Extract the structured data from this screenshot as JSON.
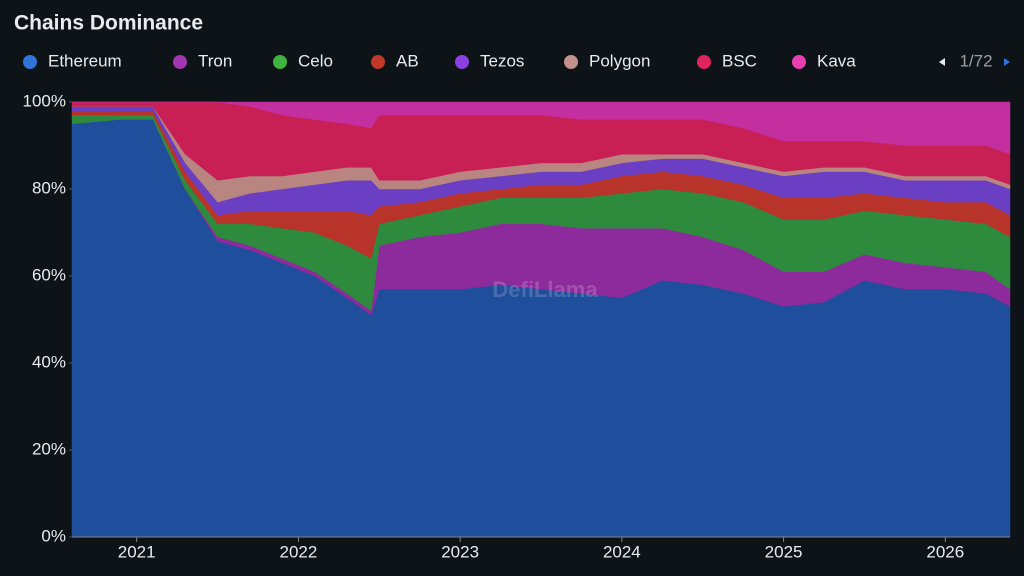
{
  "chart_data": {
    "type": "stacked_area",
    "title": "Chains Dominance",
    "watermark": "DefiLlama",
    "legend_page": "1/72",
    "x": [
      2020.6,
      2020.9,
      2021.1,
      2021.3,
      2021.5,
      2021.7,
      2021.9,
      2022.1,
      2022.3,
      2022.45,
      2022.5,
      2022.75,
      2023.0,
      2023.25,
      2023.5,
      2023.75,
      2024.0,
      2024.25,
      2024.5,
      2024.75,
      2025.0,
      2025.25,
      2025.5,
      2025.75,
      2026.0,
      2026.25,
      2026.4
    ],
    "xlim": [
      2020.6,
      2026.4
    ],
    "xticks": [
      2021,
      2022,
      2023,
      2024,
      2025,
      2026
    ],
    "ylim": [
      0,
      100
    ],
    "yticks": [
      {
        "value": 0,
        "label": "0%"
      },
      {
        "value": 20,
        "label": "20%"
      },
      {
        "value": 40,
        "label": "40%"
      },
      {
        "value": 60,
        "label": "60%"
      },
      {
        "value": 80,
        "label": "80%"
      },
      {
        "value": 100,
        "label": "100%"
      }
    ],
    "series": [
      {
        "name": "Ethereum",
        "color": "#1f4e9c",
        "legend_color": "#2f74d8",
        "values": [
          95,
          96,
          96,
          80,
          68,
          66,
          63,
          60,
          55,
          51,
          57,
          57,
          57,
          58,
          57,
          56,
          55,
          59,
          58,
          56,
          53,
          54,
          59,
          57,
          57,
          56,
          53
        ]
      },
      {
        "name": "Tron",
        "color": "#8e2b9c",
        "legend_color": "#a235b0",
        "values": [
          0,
          0,
          0,
          0,
          1,
          1,
          1,
          1,
          1,
          1,
          10,
          12,
          13,
          14,
          15,
          15,
          16,
          12,
          11,
          10,
          8,
          7,
          6,
          6,
          5,
          5,
          4
        ]
      },
      {
        "name": "Celo",
        "color": "#2e8b3e",
        "legend_color": "#3fb33f",
        "values": [
          2,
          1,
          1,
          2,
          3,
          5,
          7,
          9,
          11,
          12,
          5,
          5,
          6,
          6,
          6,
          7,
          8,
          9,
          10,
          11,
          12,
          12,
          10,
          11,
          11,
          11,
          12
        ]
      },
      {
        "name": "AB",
        "color": "#b8332a",
        "legend_color": "#c0392b",
        "values": [
          1,
          1,
          1,
          2,
          2,
          3,
          4,
          5,
          8,
          10,
          4,
          3,
          3,
          2,
          3,
          3,
          4,
          4,
          4,
          4,
          5,
          5,
          4,
          4,
          4,
          5,
          5
        ]
      },
      {
        "name": "Tezos",
        "color": "#6a3fc4",
        "legend_color": "#8a3fe0",
        "values": [
          1,
          1,
          1,
          2,
          3,
          4,
          5,
          6,
          7,
          8,
          4,
          3,
          3,
          3,
          3,
          3,
          3,
          3,
          4,
          4,
          5,
          6,
          5,
          4,
          5,
          5,
          6
        ]
      },
      {
        "name": "Polygon",
        "color": "#b88580",
        "legend_color": "#c4908a",
        "values": [
          0,
          0,
          0,
          2,
          5,
          4,
          3,
          3,
          3,
          3,
          2,
          2,
          2,
          2,
          2,
          2,
          2,
          1,
          1,
          1,
          1,
          1,
          1,
          1,
          1,
          1,
          1
        ]
      },
      {
        "name": "BSC",
        "color": "#c81f55",
        "legend_color": "#e0245e",
        "values": [
          1,
          1,
          1,
          12,
          18,
          16,
          14,
          12,
          10,
          9,
          15,
          15,
          13,
          12,
          11,
          10,
          8,
          8,
          8,
          8,
          7,
          6,
          6,
          7,
          7,
          7,
          7
        ]
      },
      {
        "name": "Kava",
        "color": "#c42fa0",
        "legend_color": "#e83fb0",
        "values": [
          0,
          0,
          0,
          0,
          0,
          1,
          3,
          4,
          5,
          6,
          3,
          3,
          3,
          3,
          3,
          4,
          4,
          4,
          4,
          6,
          9,
          9,
          9,
          10,
          10,
          10,
          12
        ]
      }
    ]
  }
}
